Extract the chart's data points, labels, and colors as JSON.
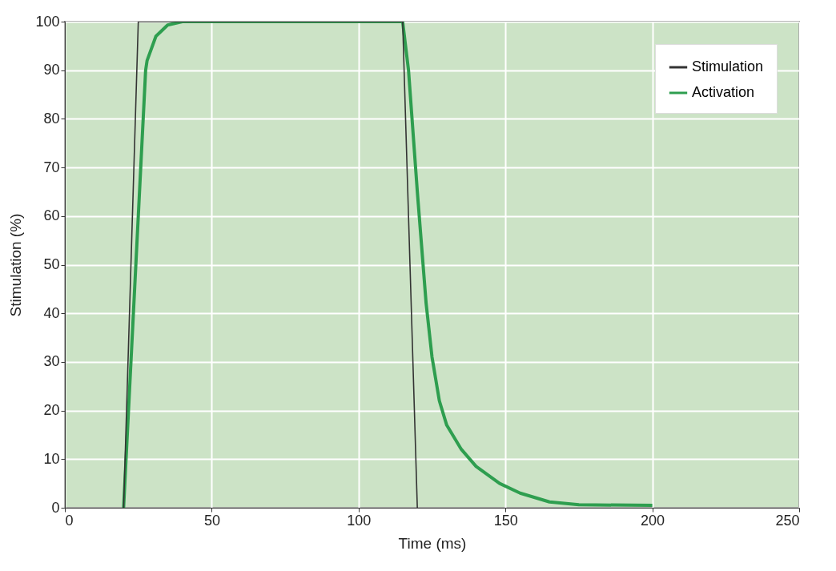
{
  "chart_data": {
    "type": "line",
    "xlabel": "Time (ms)",
    "ylabel": "Stimulation (%)",
    "xlim": [
      0,
      250
    ],
    "ylim": [
      0,
      100
    ],
    "xticks": [
      0,
      50,
      100,
      150,
      200,
      250
    ],
    "yticks": [
      0,
      10,
      20,
      30,
      40,
      50,
      60,
      70,
      80,
      90,
      100
    ],
    "grid": true,
    "legend": "top right",
    "marker": "none",
    "line_style": "solid",
    "series": [
      {
        "name": "Stimulation",
        "color": "#333333",
        "x": [
          20,
          25,
          115,
          120
        ],
        "values": [
          0,
          100,
          100,
          0
        ]
      },
      {
        "name": "Activation",
        "color": "#2e9e4f",
        "x": [
          20,
          27.5,
          28,
          31,
          35,
          40,
          115,
          117,
          120,
          123,
          125,
          127.5,
          130,
          135,
          140,
          148,
          155,
          165,
          175,
          200
        ],
        "values": [
          0,
          90,
          92,
          97,
          99.3,
          100,
          100,
          90,
          65,
          42,
          31,
          22,
          17,
          12,
          8.5,
          5,
          3,
          1.2,
          0.6,
          0.5
        ]
      }
    ]
  }
}
